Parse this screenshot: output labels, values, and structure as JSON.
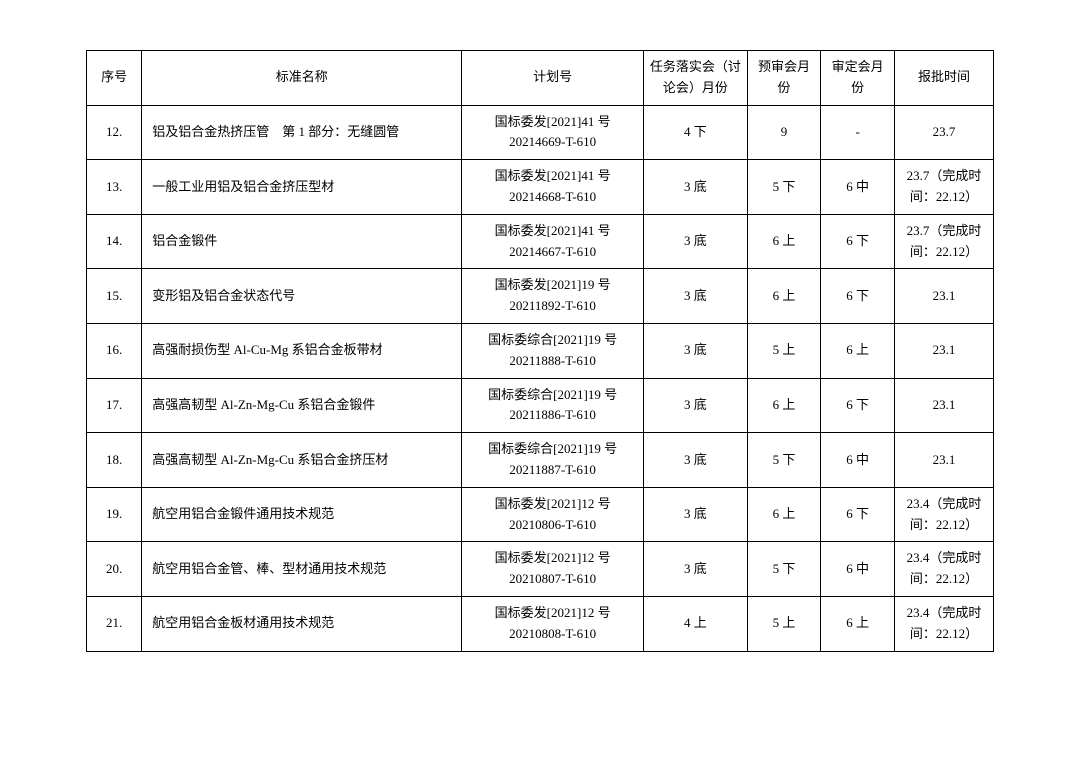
{
  "table": {
    "headers": {
      "seq": "序号",
      "name": "标准名称",
      "plan": "计划号",
      "task": "任务落实会（讨论会）月份",
      "pre": "预审会月份",
      "rev": "审定会月份",
      "time": "报批时间"
    },
    "rows": [
      {
        "seq": "12.",
        "name": "铝及铝合金热挤压管　第 1 部分：无缝圆管",
        "plan1": "国标委发[2021]41 号",
        "plan2": "20214669-T-610",
        "task": "4 下",
        "pre": "9",
        "rev": "-",
        "time": "23.7"
      },
      {
        "seq": "13.",
        "name": "一般工业用铝及铝合金挤压型材",
        "plan1": "国标委发[2021]41 号",
        "plan2": "20214668-T-610",
        "task": "3 底",
        "pre": "5 下",
        "rev": "6 中",
        "time": "23.7（完成时间：22.12）"
      },
      {
        "seq": "14.",
        "name": "铝合金锻件",
        "plan1": "国标委发[2021]41 号",
        "plan2": "20214667-T-610",
        "task": "3 底",
        "pre": "6 上",
        "rev": "6 下",
        "time": "23.7（完成时间：22.12）"
      },
      {
        "seq": "15.",
        "name": "变形铝及铝合金状态代号",
        "plan1": "国标委发[2021]19 号",
        "plan2": "20211892-T-610",
        "task": "3 底",
        "pre": "6 上",
        "rev": "6 下",
        "time": "23.1"
      },
      {
        "seq": "16.",
        "name": "高强耐损伤型 Al-Cu-Mg 系铝合金板带材",
        "plan1": "国标委综合[2021]19 号",
        "plan2": "20211888-T-610",
        "task": "3 底",
        "pre": "5 上",
        "rev": "6 上",
        "time": "23.1"
      },
      {
        "seq": "17.",
        "name": "高强高韧型 Al-Zn-Mg-Cu 系铝合金锻件",
        "plan1": "国标委综合[2021]19 号",
        "plan2": "20211886-T-610",
        "task": "3 底",
        "pre": "6 上",
        "rev": "6 下",
        "time": "23.1"
      },
      {
        "seq": "18.",
        "name": "高强高韧型 Al-Zn-Mg-Cu 系铝合金挤压材",
        "plan1": "国标委综合[2021]19 号",
        "plan2": "20211887-T-610",
        "task": "3 底",
        "pre": "5 下",
        "rev": "6 中",
        "time": "23.1"
      },
      {
        "seq": "19.",
        "name": "航空用铝合金锻件通用技术规范",
        "plan1": "国标委发[2021]12 号",
        "plan2": "20210806-T-610",
        "task": "3 底",
        "pre": "6 上",
        "rev": "6 下",
        "time": "23.4（完成时间：22.12）"
      },
      {
        "seq": "20.",
        "name": "航空用铝合金管、棒、型材通用技术规范",
        "plan1": "国标委发[2021]12 号",
        "plan2": "20210807-T-610",
        "task": "3 底",
        "pre": "5 下",
        "rev": "6 中",
        "time": "23.4（完成时间：22.12）"
      },
      {
        "seq": "21.",
        "name": "航空用铝合金板材通用技术规范",
        "plan1": "国标委发[2021]12 号",
        "plan2": "20210808-T-610",
        "task": "4 上",
        "pre": "5 上",
        "rev": "6 上",
        "time": "23.4（完成时间：22.12）"
      }
    ],
    "colors": {
      "border": "#000000",
      "background": "#ffffff",
      "text": "#000000"
    },
    "font": {
      "family": "SimSun",
      "size_pt": 10
    }
  }
}
